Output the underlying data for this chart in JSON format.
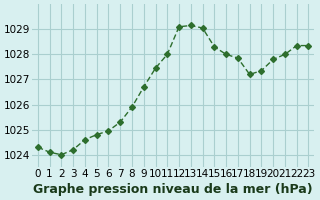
{
  "x": [
    0,
    1,
    2,
    3,
    4,
    5,
    6,
    7,
    8,
    9,
    10,
    11,
    12,
    13,
    14,
    15,
    16,
    17,
    18,
    19,
    20,
    21,
    22,
    23
  ],
  "y": [
    1024.3,
    1024.1,
    1024.0,
    1024.2,
    1024.6,
    1024.8,
    1024.95,
    1025.3,
    1025.9,
    1026.7,
    1027.45,
    1028.0,
    1029.1,
    1029.15,
    1029.05,
    1028.3,
    1028.0,
    1027.85,
    1027.2,
    1027.35,
    1027.8,
    1028.0,
    1028.35,
    1028.35
  ],
  "line_color": "#2d6e2d",
  "marker": "D",
  "marker_size": 3,
  "bg_color": "#d8f0f0",
  "grid_color": "#aacfcf",
  "xlabel": "Graphe pression niveau de la mer (hPa)",
  "xlabel_fontsize": 9,
  "tick_fontsize": 7.5,
  "ylim_min": 1023.5,
  "ylim_max": 1030.0,
  "yticks": [
    1024,
    1025,
    1026,
    1027,
    1028,
    1029
  ],
  "xticks": [
    0,
    1,
    2,
    3,
    4,
    5,
    6,
    7,
    8,
    9,
    10,
    11,
    12,
    13,
    14,
    15,
    16,
    17,
    18,
    19,
    20,
    21,
    22,
    23
  ]
}
